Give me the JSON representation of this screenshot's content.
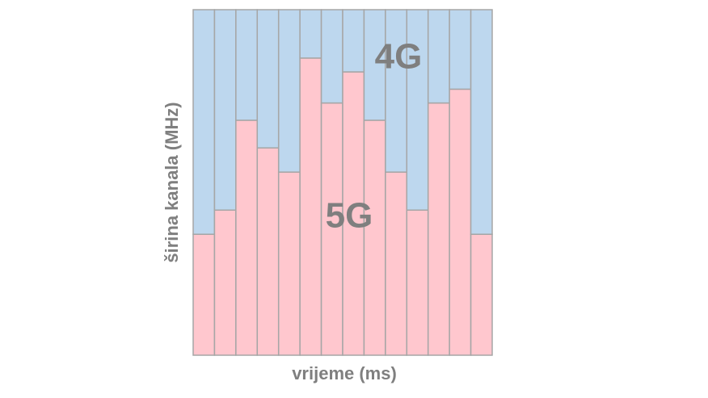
{
  "chart_data": {
    "type": "stacked-bar",
    "x_label": "vrijeme (ms)",
    "y_label": "širina kanala (MHz)",
    "categories": [
      null,
      null,
      null,
      null,
      null,
      null,
      null,
      null,
      null,
      null,
      null,
      null,
      null,
      null
    ],
    "ylim": [
      0,
      100
    ],
    "series": [
      {
        "name": "5G",
        "color": "#ffc7ce",
        "values": [
          35,
          42,
          68,
          60,
          53,
          86,
          73,
          82,
          68,
          53,
          42,
          73,
          77,
          35
        ]
      },
      {
        "name": "4G",
        "color": "#bdd7ee",
        "values": [
          65,
          58,
          32,
          40,
          47,
          14,
          27,
          18,
          32,
          47,
          58,
          27,
          23,
          65
        ]
      }
    ]
  }
}
